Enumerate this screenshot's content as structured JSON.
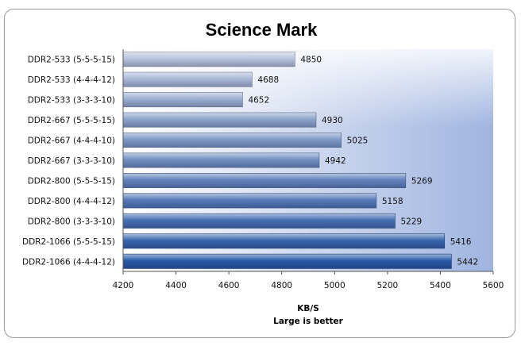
{
  "chart_data": {
    "type": "bar",
    "orientation": "horizontal",
    "title": "Science Mark",
    "xlabel": "KB/S",
    "subtitle_note": "Large is better",
    "categories": [
      "DDR2-533 (5-5-5-15)",
      "DDR2-533 (4-4-4-12)",
      "DDR2-533 (3-3-3-10)",
      "DDR2-667 (5-5-5-15)",
      "DDR2-667 (4-4-4-10)",
      "DDR2-667 (3-3-3-10)",
      "DDR2-800 (5-5-5-15)",
      "DDR2-800 (4-4-4-12)",
      "DDR2-800 (3-3-3-10)",
      "DDR2-1066 (5-5-5-15)",
      "DDR2-1066 (4-4-4-12)"
    ],
    "values": [
      4850,
      4688,
      4652,
      4930,
      5025,
      4942,
      5269,
      5158,
      5229,
      5416,
      5442
    ],
    "xlim": [
      4200,
      5600
    ],
    "xticks": [
      "4200",
      "4400",
      "4600",
      "4800",
      "5000",
      "5200",
      "5400",
      "5600"
    ],
    "grid": false,
    "legend": "none",
    "colors": {
      "bar_light": "#b8c4dc",
      "bar_dark": "#2a5aa8",
      "plot_bg_start": "#ffffff",
      "plot_bg_end": "#9fb4e0"
    }
  }
}
